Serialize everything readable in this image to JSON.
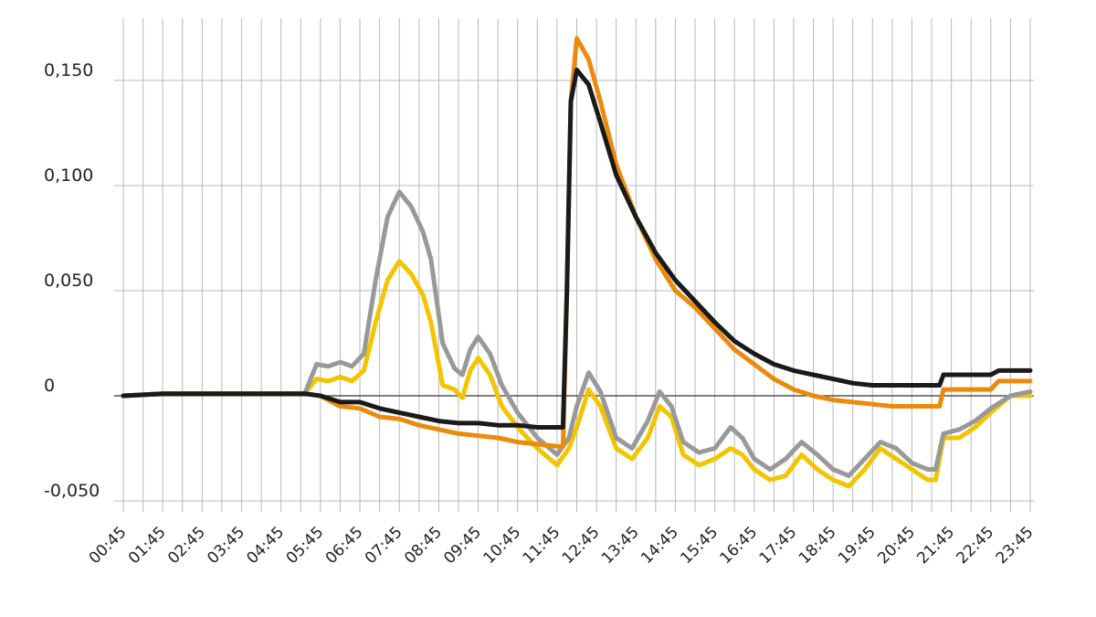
{
  "chart_data": {
    "type": "line",
    "title": "",
    "xlabel": "",
    "ylabel": "",
    "x_ticks": [
      "00:45",
      "01:45",
      "02:45",
      "03:45",
      "04:45",
      "05:45",
      "06:45",
      "07:45",
      "08:45",
      "09:45",
      "10:45",
      "11:45",
      "12:45",
      "13:45",
      "14:45",
      "15:45",
      "16:45",
      "17:45",
      "18:45",
      "19:45",
      "20:45",
      "21:45",
      "22:45",
      "23:45"
    ],
    "y_ticks": [
      {
        "value": 0.15,
        "label": "0,150"
      },
      {
        "value": 0.1,
        "label": "0,100"
      },
      {
        "value": 0.05,
        "label": "0,050"
      },
      {
        "value": 0,
        "label": "0"
      },
      {
        "value": -0.05,
        "label": "-0,050"
      }
    ],
    "ylim": [
      -0.05,
      0.15
    ],
    "grid": true,
    "x_unit": "hours (24h clock)",
    "series": [
      {
        "color": "#f2c500",
        "points": [
          [
            0,
            0
          ],
          [
            1,
            0.001
          ],
          [
            2,
            0.001
          ],
          [
            3,
            0.001
          ],
          [
            4,
            0.001
          ],
          [
            4.6,
            0.001
          ],
          [
            4.9,
            0.008
          ],
          [
            5.2,
            0.007
          ],
          [
            5.5,
            0.009
          ],
          [
            5.8,
            0.007
          ],
          [
            6.1,
            0.012
          ],
          [
            6.4,
            0.035
          ],
          [
            6.7,
            0.055
          ],
          [
            7,
            0.064
          ],
          [
            7.3,
            0.058
          ],
          [
            7.6,
            0.048
          ],
          [
            7.8,
            0.035
          ],
          [
            8.1,
            0.005
          ],
          [
            8.4,
            0.003
          ],
          [
            8.6,
            -0.001
          ],
          [
            8.8,
            0.012
          ],
          [
            9,
            0.018
          ],
          [
            9.3,
            0.01
          ],
          [
            9.6,
            -0.005
          ],
          [
            10,
            -0.015
          ],
          [
            10.5,
            -0.025
          ],
          [
            11,
            -0.033
          ],
          [
            11.3,
            -0.025
          ],
          [
            11.5,
            -0.015
          ],
          [
            11.8,
            0.003
          ],
          [
            12.1,
            -0.005
          ],
          [
            12.5,
            -0.025
          ],
          [
            12.9,
            -0.03
          ],
          [
            13.3,
            -0.02
          ],
          [
            13.6,
            -0.005
          ],
          [
            13.9,
            -0.01
          ],
          [
            14.2,
            -0.028
          ],
          [
            14.6,
            -0.033
          ],
          [
            15,
            -0.03
          ],
          [
            15.4,
            -0.025
          ],
          [
            15.7,
            -0.028
          ],
          [
            16,
            -0.035
          ],
          [
            16.4,
            -0.04
          ],
          [
            16.8,
            -0.038
          ],
          [
            17.2,
            -0.028
          ],
          [
            17.6,
            -0.035
          ],
          [
            18,
            -0.04
          ],
          [
            18.4,
            -0.043
          ],
          [
            18.8,
            -0.035
          ],
          [
            19.2,
            -0.025
          ],
          [
            19.6,
            -0.03
          ],
          [
            20,
            -0.035
          ],
          [
            20.4,
            -0.04
          ],
          [
            20.6,
            -0.04
          ],
          [
            20.8,
            -0.02
          ],
          [
            21.2,
            -0.02
          ],
          [
            21.6,
            -0.015
          ],
          [
            22,
            -0.008
          ],
          [
            22.5,
            0
          ],
          [
            23,
            0
          ]
        ]
      },
      {
        "color": "#999999",
        "points": [
          [
            0,
            0
          ],
          [
            1,
            0.001
          ],
          [
            2,
            0.001
          ],
          [
            3,
            0.001
          ],
          [
            4,
            0.001
          ],
          [
            4.6,
            0.001
          ],
          [
            4.9,
            0.015
          ],
          [
            5.2,
            0.014
          ],
          [
            5.5,
            0.016
          ],
          [
            5.8,
            0.014
          ],
          [
            6.1,
            0.02
          ],
          [
            6.4,
            0.055
          ],
          [
            6.7,
            0.085
          ],
          [
            7,
            0.097
          ],
          [
            7.3,
            0.09
          ],
          [
            7.6,
            0.078
          ],
          [
            7.8,
            0.065
          ],
          [
            8.1,
            0.025
          ],
          [
            8.4,
            0.013
          ],
          [
            8.6,
            0.01
          ],
          [
            8.8,
            0.022
          ],
          [
            9,
            0.028
          ],
          [
            9.3,
            0.02
          ],
          [
            9.6,
            0.005
          ],
          [
            10,
            -0.008
          ],
          [
            10.5,
            -0.02
          ],
          [
            11,
            -0.028
          ],
          [
            11.3,
            -0.02
          ],
          [
            11.5,
            -0.005
          ],
          [
            11.8,
            0.011
          ],
          [
            12.1,
            0.002
          ],
          [
            12.5,
            -0.02
          ],
          [
            12.9,
            -0.025
          ],
          [
            13.3,
            -0.012
          ],
          [
            13.6,
            0.002
          ],
          [
            13.9,
            -0.005
          ],
          [
            14.2,
            -0.022
          ],
          [
            14.6,
            -0.027
          ],
          [
            15,
            -0.025
          ],
          [
            15.4,
            -0.015
          ],
          [
            15.7,
            -0.02
          ],
          [
            16,
            -0.03
          ],
          [
            16.4,
            -0.035
          ],
          [
            16.8,
            -0.03
          ],
          [
            17.2,
            -0.022
          ],
          [
            17.6,
            -0.028
          ],
          [
            18,
            -0.035
          ],
          [
            18.4,
            -0.038
          ],
          [
            18.8,
            -0.03
          ],
          [
            19.2,
            -0.022
          ],
          [
            19.6,
            -0.025
          ],
          [
            20,
            -0.032
          ],
          [
            20.4,
            -0.035
          ],
          [
            20.6,
            -0.035
          ],
          [
            20.8,
            -0.018
          ],
          [
            21.2,
            -0.016
          ],
          [
            21.6,
            -0.012
          ],
          [
            22,
            -0.006
          ],
          [
            22.5,
            0
          ],
          [
            23,
            0.002
          ]
        ]
      },
      {
        "color": "#ec8a0c",
        "points": [
          [
            0,
            0
          ],
          [
            1,
            0.001
          ],
          [
            2,
            0.001
          ],
          [
            3,
            0.001
          ],
          [
            4,
            0.001
          ],
          [
            4.6,
            0.001
          ],
          [
            5,
            0
          ],
          [
            5.5,
            -0.005
          ],
          [
            6,
            -0.006
          ],
          [
            6.5,
            -0.01
          ],
          [
            7,
            -0.011
          ],
          [
            7.5,
            -0.014
          ],
          [
            8,
            -0.016
          ],
          [
            8.5,
            -0.018
          ],
          [
            9,
            -0.019
          ],
          [
            9.5,
            -0.02
          ],
          [
            10,
            -0.022
          ],
          [
            10.5,
            -0.023
          ],
          [
            11,
            -0.024
          ],
          [
            11.15,
            -0.024
          ],
          [
            11.25,
            0.05
          ],
          [
            11.35,
            0.14
          ],
          [
            11.5,
            0.17
          ],
          [
            11.8,
            0.16
          ],
          [
            12.1,
            0.14
          ],
          [
            12.5,
            0.11
          ],
          [
            13,
            0.085
          ],
          [
            13.5,
            0.065
          ],
          [
            14,
            0.05
          ],
          [
            14.5,
            0.042
          ],
          [
            15,
            0.032
          ],
          [
            15.5,
            0.022
          ],
          [
            16,
            0.015
          ],
          [
            16.5,
            0.008
          ],
          [
            17,
            0.003
          ],
          [
            17.5,
            0
          ],
          [
            18,
            -0.002
          ],
          [
            18.5,
            -0.003
          ],
          [
            19,
            -0.004
          ],
          [
            19.5,
            -0.005
          ],
          [
            20,
            -0.005
          ],
          [
            20.5,
            -0.005
          ],
          [
            20.7,
            -0.005
          ],
          [
            20.8,
            0.003
          ],
          [
            21.5,
            0.003
          ],
          [
            22,
            0.003
          ],
          [
            22.2,
            0.007
          ],
          [
            23,
            0.007
          ]
        ]
      },
      {
        "color": "#1a1a1a",
        "points": [
          [
            0,
            0
          ],
          [
            1,
            0.001
          ],
          [
            2,
            0.001
          ],
          [
            3,
            0.001
          ],
          [
            4,
            0.001
          ],
          [
            4.6,
            0.001
          ],
          [
            5,
            0
          ],
          [
            5.5,
            -0.003
          ],
          [
            6,
            -0.003
          ],
          [
            6.5,
            -0.006
          ],
          [
            7,
            -0.008
          ],
          [
            7.5,
            -0.01
          ],
          [
            8,
            -0.012
          ],
          [
            8.5,
            -0.013
          ],
          [
            9,
            -0.013
          ],
          [
            9.5,
            -0.014
          ],
          [
            10,
            -0.014
          ],
          [
            10.5,
            -0.015
          ],
          [
            11,
            -0.015
          ],
          [
            11.15,
            -0.015
          ],
          [
            11.25,
            0.05
          ],
          [
            11.35,
            0.14
          ],
          [
            11.5,
            0.155
          ],
          [
            11.8,
            0.148
          ],
          [
            12.1,
            0.13
          ],
          [
            12.5,
            0.105
          ],
          [
            13,
            0.085
          ],
          [
            13.5,
            0.068
          ],
          [
            14,
            0.055
          ],
          [
            14.5,
            0.045
          ],
          [
            15,
            0.035
          ],
          [
            15.5,
            0.026
          ],
          [
            16,
            0.02
          ],
          [
            16.5,
            0.015
          ],
          [
            17,
            0.012
          ],
          [
            17.5,
            0.01
          ],
          [
            18,
            0.008
          ],
          [
            18.5,
            0.006
          ],
          [
            19,
            0.005
          ],
          [
            19.5,
            0.005
          ],
          [
            20,
            0.005
          ],
          [
            20.5,
            0.005
          ],
          [
            20.7,
            0.005
          ],
          [
            20.8,
            0.01
          ],
          [
            21.5,
            0.01
          ],
          [
            22,
            0.01
          ],
          [
            22.2,
            0.012
          ],
          [
            23,
            0.012
          ]
        ]
      }
    ]
  }
}
